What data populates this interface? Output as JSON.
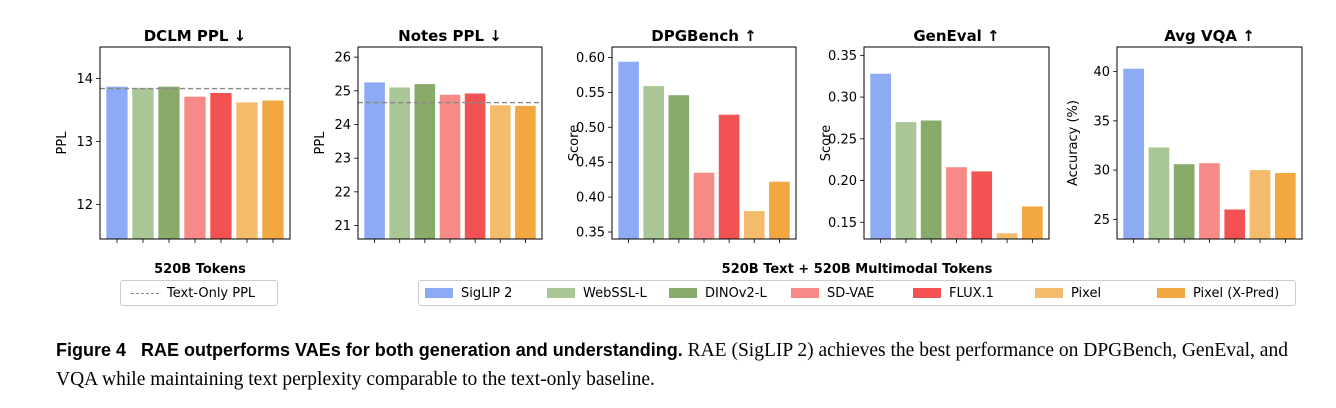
{
  "colors": {
    "SigLIP 2": "#8daaf5",
    "WebSSL-L": "#a9c795",
    "DINOv2-L": "#88ab6b",
    "SD-VAE": "#f78a87",
    "FLUX.1": "#f25252",
    "Pixel": "#f5bb6c",
    "Pixel (X-Pred)": "#f3a740"
  },
  "chart_data": [
    {
      "type": "bar",
      "title": "DCLM PPL ↓",
      "ylabel": "PPL",
      "xlabel": "",
      "categories": [
        "SigLIP 2",
        "WebSSL-L",
        "DINOv2-L",
        "SD-VAE",
        "FLUX.1",
        "Pixel",
        "Pixel (X-Pred)"
      ],
      "values": [
        13.87,
        13.85,
        13.87,
        13.71,
        13.77,
        13.62,
        13.65
      ],
      "ylim": [
        11.45,
        14.5
      ],
      "yticks": [
        12,
        13,
        14
      ],
      "ytick_labels": [
        "12",
        "13",
        "14"
      ],
      "reference_line": 13.84
    },
    {
      "type": "bar",
      "title": "Notes PPL ↓",
      "ylabel": "PPL",
      "xlabel": "",
      "categories": [
        "SigLIP 2",
        "WebSSL-L",
        "DINOv2-L",
        "SD-VAE",
        "FLUX.1",
        "Pixel",
        "Pixel (X-Pred)"
      ],
      "values": [
        25.25,
        25.1,
        25.2,
        24.88,
        24.92,
        24.57,
        24.55
      ],
      "ylim": [
        20.6,
        26.3
      ],
      "yticks": [
        21,
        22,
        23,
        24,
        25,
        26
      ],
      "ytick_labels": [
        "21",
        "22",
        "23",
        "24",
        "25",
        "26"
      ],
      "reference_line": 24.65
    },
    {
      "type": "bar",
      "title": "DPGBench ↑",
      "ylabel": "Score",
      "xlabel": "",
      "categories": [
        "SigLIP 2",
        "WebSSL-L",
        "DINOv2-L",
        "SD-VAE",
        "FLUX.1",
        "Pixel",
        "Pixel (X-Pred)"
      ],
      "values": [
        0.594,
        0.559,
        0.546,
        0.435,
        0.518,
        0.38,
        0.422
      ],
      "ylim": [
        0.34,
        0.615
      ],
      "yticks": [
        0.35,
        0.4,
        0.45,
        0.5,
        0.55,
        0.6
      ],
      "ytick_labels": [
        "0.35",
        "0.40",
        "0.45",
        "0.50",
        "0.55",
        "0.60"
      ]
    },
    {
      "type": "bar",
      "title": "GenEval ↑",
      "ylabel": "Score",
      "xlabel": "",
      "categories": [
        "SigLIP 2",
        "WebSSL-L",
        "DINOv2-L",
        "SD-VAE",
        "FLUX.1",
        "Pixel",
        "Pixel (X-Pred)"
      ],
      "values": [
        0.328,
        0.27,
        0.272,
        0.216,
        0.211,
        0.137,
        0.169
      ],
      "ylim": [
        0.13,
        0.36
      ],
      "yticks": [
        0.15,
        0.2,
        0.25,
        0.3,
        0.35
      ],
      "ytick_labels": [
        "0.15",
        "0.20",
        "0.25",
        "0.30",
        "0.35"
      ]
    },
    {
      "type": "bar",
      "title": "Avg VQA ↑",
      "ylabel": "Accuracy (%)",
      "xlabel": "",
      "categories": [
        "SigLIP 2",
        "WebSSL-L",
        "DINOv2-L",
        "SD-VAE",
        "FLUX.1",
        "Pixel",
        "Pixel (X-Pred)"
      ],
      "values": [
        40.3,
        32.3,
        30.6,
        30.7,
        26.0,
        30.0,
        29.7
      ],
      "ylim": [
        23.0,
        42.5
      ],
      "yticks": [
        25,
        30,
        35,
        40
      ],
      "ytick_labels": [
        "25",
        "30",
        "35",
        "40"
      ]
    }
  ],
  "legend_left": {
    "title": "520B Tokens",
    "line_label": "Text-Only PPL"
  },
  "legend_right": {
    "title": "520B Text + 520B Multimodal Tokens",
    "items": [
      "SigLIP 2",
      "WebSSL-L",
      "DINOv2-L",
      "SD-VAE",
      "FLUX.1",
      "Pixel",
      "Pixel (X-Pred)"
    ]
  },
  "caption": {
    "label": "Figure 4",
    "bold_text": "RAE outperforms VAEs for both generation and understanding.",
    "text": "RAE (SigLIP 2) achieves the best performance on DPGBench, GenEval, and VQA while maintaining text perplexity comparable to the text-only baseline."
  }
}
